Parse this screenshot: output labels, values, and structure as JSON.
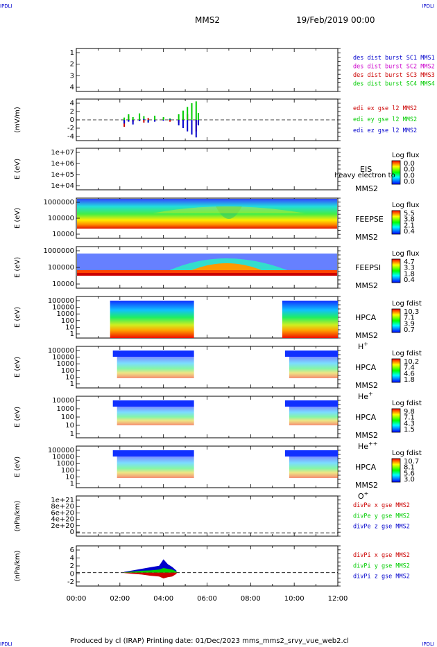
{
  "corner_labels": {
    "top_left": "IPDLI",
    "top_right": "IPDLI",
    "bottom_left": "IPDLI",
    "bottom_right": "IPDLI"
  },
  "header": {
    "spacecraft": "MMS2",
    "date": "19/Feb/2019 00:00"
  },
  "footer": {
    "text": "Produced by cl (IRAP)   Printing date: 01/Dec/2023   mms_mms2_srvy_vue_web2.cl"
  },
  "time_axis": {
    "ticks": [
      "00:00",
      "02:00",
      "04:00",
      "06:00",
      "08:00",
      "10:00",
      "12:00"
    ],
    "range_hours": [
      0,
      12
    ]
  },
  "colors": {
    "red": "#cc0000",
    "green": "#00cc00",
    "blue": "#0000cc",
    "magenta": "#cc00cc"
  },
  "chart_data": [
    {
      "type": "line",
      "id": "des-dist",
      "ylabel": "",
      "ylim": [
        0.7,
        4.5
      ],
      "yticks": [
        "1",
        "2",
        "3",
        "4"
      ],
      "grid": false,
      "series": [
        {
          "name": "des dist burst SC1 MMS1",
          "color": "#0000cc",
          "values": []
        },
        {
          "name": "des dist burst SC2 MMS2",
          "color": "#cc00cc",
          "values": []
        },
        {
          "name": "des dist burst SC3 MMS3",
          "color": "#cc0000",
          "values": []
        },
        {
          "name": "des dist burst SC4 MMS4",
          "color": "#00cc00",
          "values": []
        }
      ]
    },
    {
      "type": "line",
      "id": "edi-e",
      "ylabel": "(mV/m)",
      "ylim": [
        -4.5,
        4.5
      ],
      "yticks": [
        "4",
        "2",
        "0",
        "-2",
        "-4"
      ],
      "zero_line": true,
      "series": [
        {
          "name": "edi ex gse l2 MMS2",
          "color": "#cc0000"
        },
        {
          "name": "edi ey gse l2 MMS2",
          "color": "#00cc00"
        },
        {
          "name": "edi ez gse l2 MMS2",
          "color": "#0000cc"
        }
      ],
      "x": [
        2.2,
        2.4,
        2.6,
        2.9,
        3.1,
        3.3,
        3.6,
        4.0,
        4.3,
        4.7,
        4.9,
        5.1,
        5.3,
        5.5,
        5.6
      ],
      "ex": [
        -1.5,
        0.8,
        -0.5,
        0.3,
        -0.6,
        0.4,
        -0.2,
        0.3,
        -0.4,
        -0.6,
        0.5,
        1.2,
        -1.8,
        -2.5,
        -1.0
      ],
      "ey": [
        0.5,
        1.2,
        0.6,
        1.4,
        0.8,
        -0.5,
        0.9,
        0.6,
        0.3,
        1.2,
        2.0,
        2.8,
        3.6,
        4.0,
        1.5
      ],
      "ez": [
        -0.8,
        -0.4,
        -1.0,
        -0.3,
        0.2,
        -0.6,
        -0.4,
        -0.2,
        0.1,
        -1.2,
        -1.8,
        -2.5,
        -3.2,
        -3.8,
        -1.2
      ]
    },
    {
      "type": "heatmap",
      "id": "eis",
      "ylabel": "E (eV)",
      "yticks": [
        "1e+07",
        "1e+06",
        "1e+05",
        "1e+04"
      ],
      "instrument": "EIS",
      "spacecraft": "MMS2",
      "overlay_text": "heavy electron to",
      "colorbar": {
        "title": "Log flux",
        "ticks": [
          "0.0",
          "0.0",
          "0.0",
          "0.0"
        ]
      },
      "empty": true
    },
    {
      "type": "heatmap",
      "id": "feeps-e",
      "ylabel": "E (eV)",
      "yticks": [
        "1000000",
        "100000",
        "10000"
      ],
      "instrument": "FEEPSE",
      "spacecraft": "MMS2",
      "colorbar": {
        "title": "Log flux",
        "ticks": [
          "5.5",
          "3.8",
          "2.1",
          "0.4"
        ]
      }
    },
    {
      "type": "heatmap",
      "id": "feeps-i",
      "ylabel": "E (eV)",
      "yticks": [
        "1000000",
        "100000",
        "10000"
      ],
      "instrument": "FEEPSI",
      "spacecraft": "MMS2",
      "colorbar": {
        "title": "Log flux",
        "ticks": [
          "4.7",
          "3.3",
          "1.8",
          "0.4"
        ]
      }
    },
    {
      "type": "heatmap",
      "id": "hpca-h",
      "ylabel": "E (eV)",
      "yticks": [
        "100000",
        "10000",
        "1000",
        "100",
        "10",
        "1"
      ],
      "instrument": "HPCA",
      "spacecraft": "MMS2",
      "species": "H",
      "charge": "+",
      "colorbar": {
        "title": "Log fdist",
        "ticks": [
          "10.3",
          "7.1",
          "3.9",
          "0.7"
        ]
      },
      "coverage_hours": [
        [
          1.55,
          5.4
        ],
        [
          9.45,
          12
        ]
      ]
    },
    {
      "type": "heatmap",
      "id": "hpca-he1",
      "ylabel": "E (eV)",
      "yticks": [
        "100000",
        "10000",
        "1000",
        "100",
        "10",
        "1"
      ],
      "instrument": "HPCA",
      "spacecraft": "MMS2",
      "species": "He",
      "charge": "+",
      "colorbar": {
        "title": "Log fdist",
        "ticks": [
          "10.2",
          "7.4",
          "4.6",
          "1.8"
        ]
      },
      "coverage_hours": [
        [
          1.55,
          5.4
        ],
        [
          9.45,
          12
        ]
      ]
    },
    {
      "type": "heatmap",
      "id": "hpca-he2",
      "ylabel": "E (eV)",
      "yticks": [
        "10000",
        "1000",
        "100",
        "10",
        "1"
      ],
      "instrument": "HPCA",
      "spacecraft": "MMS2",
      "species": "He",
      "charge": "++",
      "colorbar": {
        "title": "Log fdist",
        "ticks": [
          "9.8",
          "7.1",
          "4.3",
          "1.5"
        ]
      },
      "coverage_hours": [
        [
          1.55,
          5.4
        ],
        [
          9.45,
          12
        ]
      ]
    },
    {
      "type": "heatmap",
      "id": "hpca-o",
      "ylabel": "E (eV)",
      "yticks": [
        "100000",
        "10000",
        "1000",
        "100",
        "10",
        "1"
      ],
      "instrument": "HPCA",
      "spacecraft": "MMS2",
      "species": "O",
      "charge": "+",
      "colorbar": {
        "title": "Log fdist",
        "ticks": [
          "10.7",
          "8.1",
          "5.6",
          "3.0"
        ]
      },
      "coverage_hours": [
        [
          1.55,
          5.4
        ],
        [
          9.45,
          12
        ]
      ]
    },
    {
      "type": "line",
      "id": "divpe",
      "ylabel": "(nPa/km)",
      "ylim": [
        -1e+20,
        1.1e+21
      ],
      "yticks": [
        "1e+21",
        "8e+20",
        "6e+20",
        "4e+20",
        "2e+20",
        "0"
      ],
      "zero_line": true,
      "series": [
        {
          "name": "divPe x gse MMS2",
          "color": "#cc0000"
        },
        {
          "name": "divPe y gse MMS2",
          "color": "#00cc00"
        },
        {
          "name": "divPe z gse MMS2",
          "color": "#0000cc"
        }
      ]
    },
    {
      "type": "area",
      "id": "divpi",
      "ylabel": "(nPa/km)",
      "ylim": [
        -3.5,
        7
      ],
      "yticks": [
        "6",
        "4",
        "2",
        "0",
        "-2"
      ],
      "zero_line": true,
      "series": [
        {
          "name": "divPi x gse MMS2",
          "color": "#cc0000"
        },
        {
          "name": "divPi y gse MMS2",
          "color": "#00cc00"
        },
        {
          "name": "divPi z gse MMS2",
          "color": "#0000cc"
        }
      ],
      "x": [
        2.2,
        2.6,
        3.0,
        3.4,
        3.8,
        4.0,
        4.2,
        4.4,
        4.6
      ],
      "z_upper": [
        0.2,
        0.6,
        1.0,
        1.4,
        1.8,
        3.5,
        2.2,
        1.5,
        0.5
      ],
      "y_upper": [
        0.1,
        0.3,
        0.5,
        0.6,
        0.8,
        1.2,
        1.0,
        0.8,
        0.3
      ],
      "x_lower": [
        -0.1,
        -0.3,
        -0.5,
        -0.8,
        -1.0,
        -1.5,
        -1.2,
        -1.0,
        -0.3
      ]
    }
  ]
}
